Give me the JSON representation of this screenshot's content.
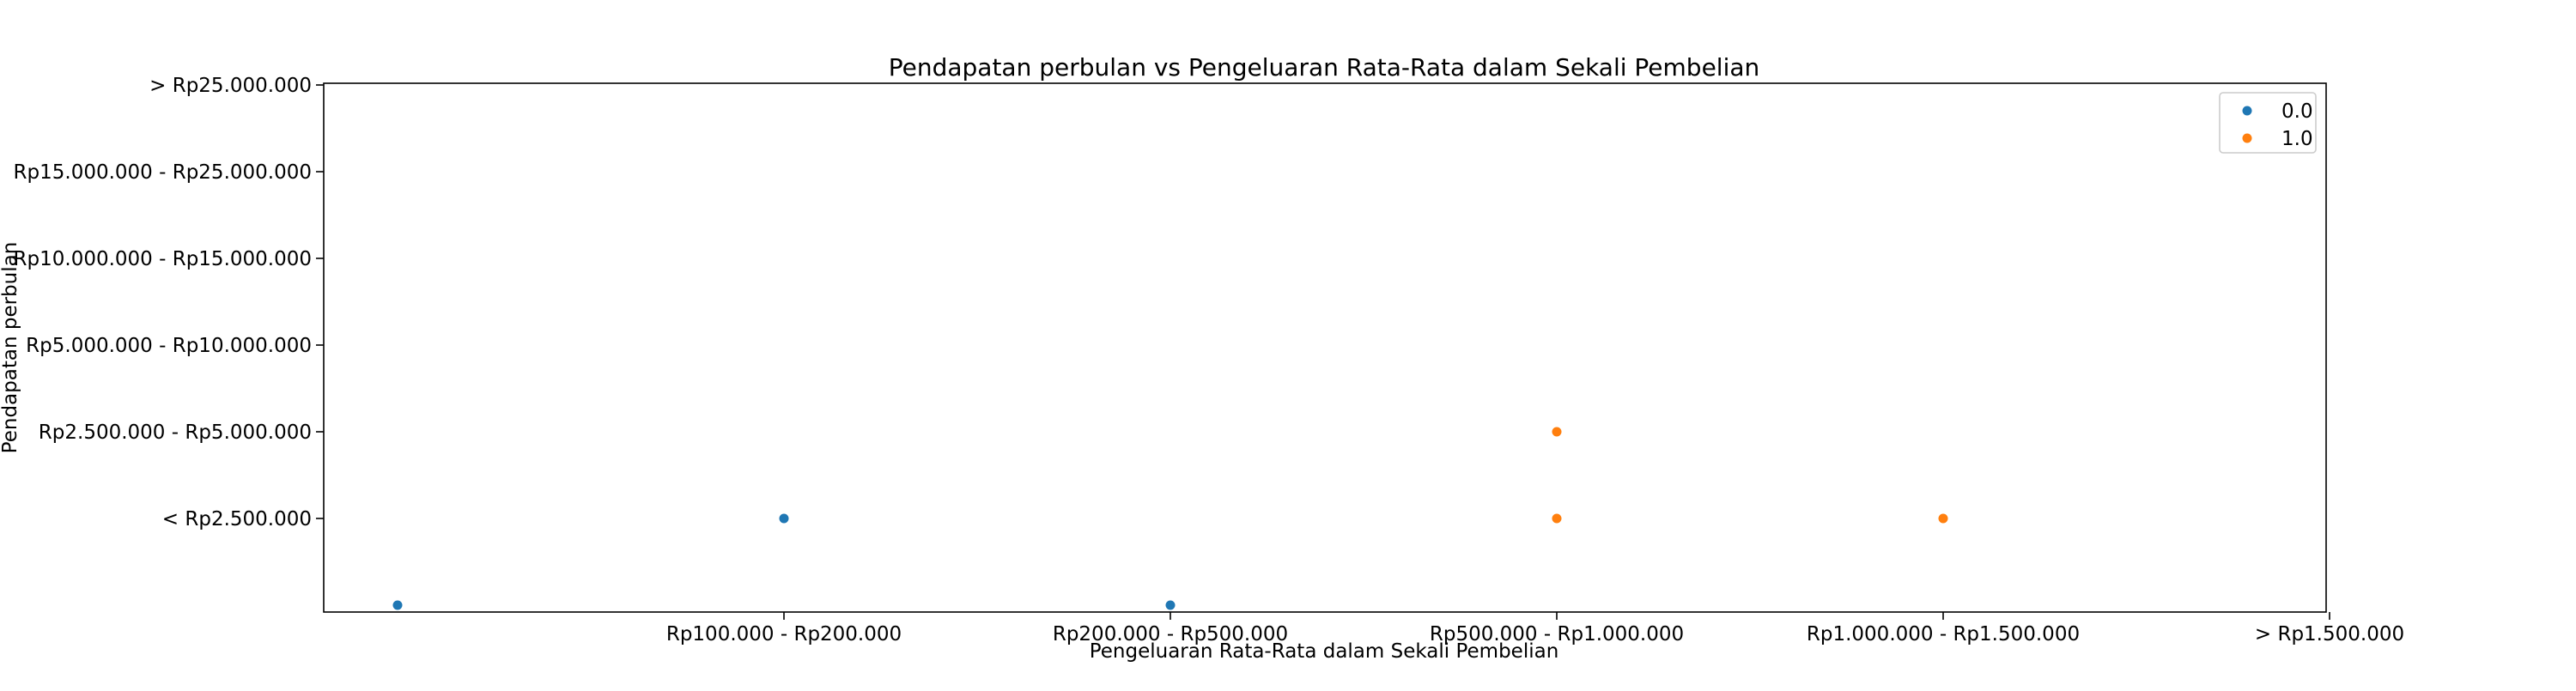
{
  "chart_data": {
    "type": "scatter",
    "title": "Pendapatan perbulan vs Pengeluaran Rata-Rata dalam Sekali Pembelian",
    "xlabel": "Pengeluaran Rata-Rata dalam Sekali Pembelian",
    "ylabel": "Pendapatan perbulan",
    "x_ticks": [
      "Rp100.000 - Rp200.000",
      "Rp200.000 - Rp500.000",
      "Rp500.000 - Rp1.000.000",
      "Rp1.000.000 - Rp1.500.000",
      "> Rp1.500.000"
    ],
    "y_ticks": [
      "< Rp2.500.000",
      "Rp2.500.000 - Rp5.000.000",
      "Rp5.000.000 - Rp10.000.000",
      "Rp10.000.000 - Rp15.000.000",
      "Rp15.000.000 - Rp25.000.000",
      "> Rp25.000.000"
    ],
    "grid": false,
    "legend_position": "top-right",
    "series": [
      {
        "name": "0.0",
        "color": "#1f77b4",
        "points": [
          {
            "x": "",
            "y": ""
          },
          {
            "x": "Rp100.000 - Rp200.000",
            "y": "< Rp2.500.000"
          },
          {
            "x": "Rp200.000 - Rp500.000",
            "y": ""
          }
        ]
      },
      {
        "name": "1.0",
        "color": "#ff7f0e",
        "points": [
          {
            "x": "Rp500.000 - Rp1.000.000",
            "y": "Rp2.500.000 - Rp5.000.000"
          },
          {
            "x": "Rp500.000 - Rp1.000.000",
            "y": "< Rp2.500.000"
          },
          {
            "x": "Rp1.000.000 - Rp1.500.000",
            "y": "< Rp2.500.000"
          }
        ]
      }
    ]
  }
}
